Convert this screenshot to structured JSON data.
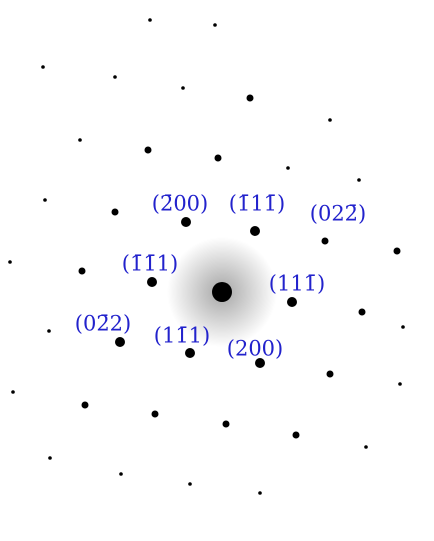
{
  "labels": [
    "(2̄00)",
    "(1̄11̄)",
    "(022̄)",
    "(1̄1̄1)",
    "(111̄)",
    "(02̄2)",
    "(11̄1)",
    "(200)"
  ]
}
